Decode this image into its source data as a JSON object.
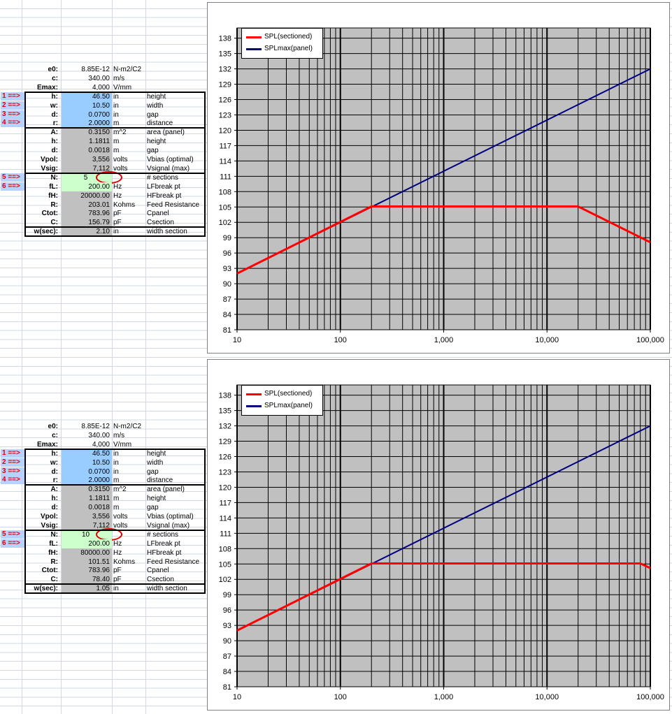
{
  "panels": [
    {
      "params": [
        {
          "label": "e0:",
          "value": "8.85E-12",
          "unit": "N-m2/C2",
          "desc": "",
          "arrow": "",
          "fill": "none"
        },
        {
          "label": "c:",
          "value": "340.00",
          "unit": "m/s",
          "desc": "",
          "arrow": "",
          "fill": "none"
        },
        {
          "label": "Emax:",
          "value": "4,000",
          "unit": "V/mm",
          "desc": "",
          "arrow": "",
          "fill": "none"
        },
        {
          "label": "h:",
          "value": "46.50",
          "unit": "in",
          "desc": "height",
          "arrow": "1 ==>",
          "fill": "blue"
        },
        {
          "label": "w:",
          "value": "10.50",
          "unit": "in",
          "desc": "width",
          "arrow": "2 ==>",
          "fill": "blue"
        },
        {
          "label": "d:",
          "value": "0.0700",
          "unit": "in",
          "desc": "gap",
          "arrow": "3 ==>",
          "fill": "blue"
        },
        {
          "label": "r:",
          "value": "2.0000",
          "unit": "m",
          "desc": "distance",
          "arrow": "4 ==>",
          "fill": "blue"
        },
        {
          "label": "A:",
          "value": "0.3150",
          "unit": "m^2",
          "desc": "area (panel)",
          "arrow": "",
          "fill": "gray"
        },
        {
          "label": "h:",
          "value": "1.1811",
          "unit": "m",
          "desc": "height",
          "arrow": "",
          "fill": "gray"
        },
        {
          "label": "d:",
          "value": "0.0018",
          "unit": "m",
          "desc": "gap",
          "arrow": "",
          "fill": "gray"
        },
        {
          "label": "Vpol:",
          "value": "3,556",
          "unit": "volts",
          "desc": "Vbias (optimal)",
          "arrow": "",
          "fill": "gray"
        },
        {
          "label": "Vsig:",
          "value": "7,112",
          "unit": "volts",
          "desc": "Vsignal (max)",
          "arrow": "",
          "fill": "gray"
        },
        {
          "label": "N:",
          "value": "5",
          "unit": "",
          "desc": "# sections",
          "arrow": "5 ==>",
          "fill": "green"
        },
        {
          "label": "fL:",
          "value": "200.00",
          "unit": "Hz",
          "desc": "LFbreak pt",
          "arrow": "6 ==>",
          "fill": "green"
        },
        {
          "label": "fH:",
          "value": "20000.00",
          "unit": "Hz",
          "desc": "HFbreak pt",
          "arrow": "",
          "fill": "gray"
        },
        {
          "label": "R:",
          "value": "203.01",
          "unit": "Kohms",
          "desc": "Feed Resistance",
          "arrow": "",
          "fill": "gray"
        },
        {
          "label": "Ctot:",
          "value": "783.96",
          "unit": "pF",
          "desc": "Cpanel",
          "arrow": "",
          "fill": "gray"
        },
        {
          "label": "C:",
          "value": "156.79",
          "unit": "pF",
          "desc": "Csection",
          "arrow": "",
          "fill": "gray"
        },
        {
          "label": "w(sec):",
          "value": "2.10",
          "unit": "in",
          "desc": "width section",
          "arrow": "",
          "fill": "gray"
        }
      ]
    },
    {
      "params": [
        {
          "label": "e0:",
          "value": "8.85E-12",
          "unit": "N-m2/C2",
          "desc": "",
          "arrow": "",
          "fill": "none"
        },
        {
          "label": "c:",
          "value": "340.00",
          "unit": "m/s",
          "desc": "",
          "arrow": "",
          "fill": "none"
        },
        {
          "label": "Emax:",
          "value": "4,000",
          "unit": "V/mm",
          "desc": "",
          "arrow": "",
          "fill": "none"
        },
        {
          "label": "h:",
          "value": "46.50",
          "unit": "in",
          "desc": "height",
          "arrow": "1 ==>",
          "fill": "blue"
        },
        {
          "label": "w:",
          "value": "10.50",
          "unit": "in",
          "desc": "width",
          "arrow": "2 ==>",
          "fill": "blue"
        },
        {
          "label": "d:",
          "value": "0.0700",
          "unit": "in",
          "desc": "gap",
          "arrow": "3 ==>",
          "fill": "blue"
        },
        {
          "label": "r:",
          "value": "2.0000",
          "unit": "m",
          "desc": "distance",
          "arrow": "4 ==>",
          "fill": "blue"
        },
        {
          "label": "A:",
          "value": "0.3150",
          "unit": "m^2",
          "desc": "area (panel)",
          "arrow": "",
          "fill": "gray"
        },
        {
          "label": "h:",
          "value": "1.1811",
          "unit": "m",
          "desc": "height",
          "arrow": "",
          "fill": "gray"
        },
        {
          "label": "d:",
          "value": "0.0018",
          "unit": "m",
          "desc": "gap",
          "arrow": "",
          "fill": "gray"
        },
        {
          "label": "Vpol:",
          "value": "3,556",
          "unit": "volts",
          "desc": "Vbias (optimal)",
          "arrow": "",
          "fill": "gray"
        },
        {
          "label": "Vsig:",
          "value": "7,112",
          "unit": "volts",
          "desc": "Vsignal (max)",
          "arrow": "",
          "fill": "gray"
        },
        {
          "label": "N:",
          "value": "10",
          "unit": "",
          "desc": "# sections",
          "arrow": "5 ==>",
          "fill": "green"
        },
        {
          "label": "fL:",
          "value": "200.00",
          "unit": "Hz",
          "desc": "LFbreak pt",
          "arrow": "6 ==>",
          "fill": "green"
        },
        {
          "label": "fH:",
          "value": "80000.00",
          "unit": "Hz",
          "desc": "HFbreak pt",
          "arrow": "",
          "fill": "gray"
        },
        {
          "label": "R:",
          "value": "101.51",
          "unit": "Kohms",
          "desc": "Feed Resistance",
          "arrow": "",
          "fill": "gray"
        },
        {
          "label": "Ctot:",
          "value": "783.96",
          "unit": "pF",
          "desc": "Cpanel",
          "arrow": "",
          "fill": "gray"
        },
        {
          "label": "C:",
          "value": "78.40",
          "unit": "pF",
          "desc": "Csection",
          "arrow": "",
          "fill": "gray"
        },
        {
          "label": "w(sec):",
          "value": "1.05",
          "unit": "in",
          "desc": "width section",
          "arrow": "",
          "fill": "gray"
        }
      ]
    }
  ],
  "chart_data": [
    {
      "type": "line",
      "title": "",
      "xlabel": "",
      "ylabel": "",
      "xscale": "log",
      "xlim": [
        10,
        100000
      ],
      "ylim": [
        81,
        140
      ],
      "x_ticks": [
        10,
        100,
        1000,
        10000,
        100000
      ],
      "x_tick_labels": [
        "10",
        "100",
        "1,000",
        "10,000",
        "100,000"
      ],
      "y_ticks": [
        81,
        84,
        87,
        90,
        93,
        96,
        99,
        102,
        105,
        108,
        111,
        114,
        117,
        120,
        123,
        126,
        129,
        132,
        135,
        138
      ],
      "y_tick_labels": [
        "81",
        "84",
        "87",
        "90",
        "93",
        "96",
        "99",
        "102",
        "105",
        "108",
        "111",
        "114",
        "117",
        "120",
        "123",
        "126",
        "129",
        "132",
        "135",
        "138"
      ],
      "legend_position": "top-left",
      "grid": true,
      "plot_background": "#c0c0c0",
      "series": [
        {
          "name": "SPL(sectioned)",
          "color": "#ff0000",
          "x": [
            10,
            200,
            20000,
            100000
          ],
          "y": [
            92,
            105.1,
            105.1,
            98.1
          ]
        },
        {
          "name": "SPLmax(panel)",
          "color": "#000080",
          "x": [
            10,
            100000
          ],
          "y": [
            92,
            132
          ]
        }
      ]
    },
    {
      "type": "line",
      "title": "",
      "xlabel": "",
      "ylabel": "",
      "xscale": "log",
      "xlim": [
        10,
        100000
      ],
      "ylim": [
        81,
        140
      ],
      "x_ticks": [
        10,
        100,
        1000,
        10000,
        100000
      ],
      "x_tick_labels": [
        "10",
        "100",
        "1,000",
        "10,000",
        "100,000"
      ],
      "y_ticks": [
        81,
        84,
        87,
        90,
        93,
        96,
        99,
        102,
        105,
        108,
        111,
        114,
        117,
        120,
        123,
        126,
        129,
        132,
        135,
        138
      ],
      "y_tick_labels": [
        "81",
        "84",
        "87",
        "90",
        "93",
        "96",
        "99",
        "102",
        "105",
        "108",
        "111",
        "114",
        "117",
        "120",
        "123",
        "126",
        "129",
        "132",
        "135",
        "138"
      ],
      "legend_position": "top-left",
      "grid": true,
      "plot_background": "#c0c0c0",
      "series": [
        {
          "name": "SPL(sectioned)",
          "color": "#ff0000",
          "x": [
            10,
            200,
            80000,
            100000
          ],
          "y": [
            92,
            105.1,
            105.1,
            104.2
          ]
        },
        {
          "name": "SPLmax(panel)",
          "color": "#000080",
          "x": [
            10,
            100000
          ],
          "y": [
            92,
            132
          ]
        }
      ]
    }
  ]
}
